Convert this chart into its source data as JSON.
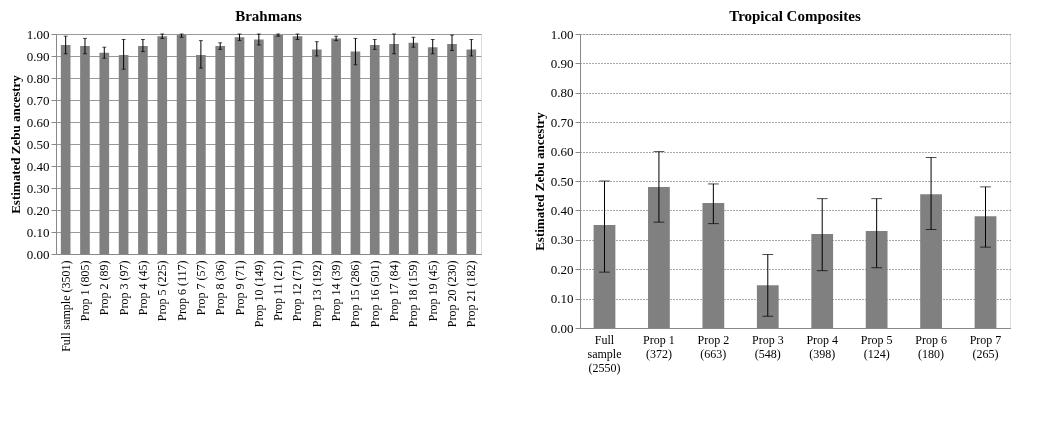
{
  "chart_data": [
    {
      "type": "bar",
      "title": "Brahmans",
      "ylabel": "Estimated Zebu ancestry",
      "categories": [
        "Full sample (3501)",
        "Prop 1 (805)",
        "Prop 2 (89)",
        "Prop 3 (97)",
        "Prop 4 (45)",
        "Prop 5 (225)",
        "Prop 6 (117)",
        "Prop 7 (57)",
        "Prop 8 (36)",
        "Prop 9 (71)",
        "Prop 10 (149)",
        "Prop 11 (21)",
        "Prop 12 (71)",
        "Prop 13 (192)",
        "Prop 14 (39)",
        "Prop 15 (286)",
        "Prop 16 (501)",
        "Prop 17 (84)",
        "Prop 18 (159)",
        "Prop 19 (45)",
        "Prop 20 (230)",
        "Prop 21 (182)"
      ],
      "values": [
        0.95,
        0.945,
        0.915,
        0.905,
        0.945,
        0.99,
        0.995,
        0.905,
        0.945,
        0.985,
        0.975,
        0.995,
        0.99,
        0.93,
        0.98,
        0.92,
        0.95,
        0.955,
        0.96,
        0.94,
        0.955,
        0.93
      ],
      "errors": [
        [
          0.91,
          0.99
        ],
        [
          0.91,
          0.98
        ],
        [
          0.89,
          0.94
        ],
        [
          0.84,
          0.975
        ],
        [
          0.92,
          0.975
        ],
        [
          0.98,
          1.0
        ],
        [
          0.985,
          1.0
        ],
        [
          0.845,
          0.97
        ],
        [
          0.93,
          0.96
        ],
        [
          0.97,
          1.0
        ],
        [
          0.95,
          1.0
        ],
        [
          0.99,
          1.0
        ],
        [
          0.975,
          1.0
        ],
        [
          0.9,
          0.965
        ],
        [
          0.97,
          0.99
        ],
        [
          0.86,
          0.98
        ],
        [
          0.93,
          0.975
        ],
        [
          0.91,
          1.0
        ],
        [
          0.94,
          0.985
        ],
        [
          0.91,
          0.975
        ],
        [
          0.925,
          0.995
        ],
        [
          0.9,
          0.975
        ]
      ],
      "color": "#808080",
      "ylim": [
        0,
        1
      ],
      "yticks": [
        {
          "value": 0,
          "label": "0.00"
        },
        {
          "value": 0.1,
          "label": "0.10"
        },
        {
          "value": 0.2,
          "label": "0.20"
        },
        {
          "value": 0.3,
          "label": "0.30"
        },
        {
          "value": 0.4,
          "label": "0.40"
        },
        {
          "value": 0.5,
          "label": "0.50"
        },
        {
          "value": 0.6,
          "label": "0.60"
        },
        {
          "value": 0.7,
          "label": "0.70"
        },
        {
          "value": 0.8,
          "label": "0.80"
        },
        {
          "value": 0.9,
          "label": "0.90"
        },
        {
          "value": 1,
          "label": "1.00"
        }
      ],
      "grid": "y"
    },
    {
      "type": "bar",
      "title": "Tropical Composites",
      "ylabel": "Estimated Zebu ancestry",
      "categories": [
        "Full sample (2550)",
        "Prop 1 (372)",
        "Prop 2 (663)",
        "Prop 3 (548)",
        "Prop 4 (398)",
        "Prop 5 (124)",
        "Prop 6 (180)",
        "Prop 7 (265)"
      ],
      "values": [
        0.35,
        0.48,
        0.425,
        0.145,
        0.32,
        0.33,
        0.455,
        0.38
      ],
      "errors": [
        [
          0.19,
          0.5
        ],
        [
          0.36,
          0.6
        ],
        [
          0.355,
          0.49
        ],
        [
          0.04,
          0.25
        ],
        [
          0.195,
          0.44
        ],
        [
          0.205,
          0.44
        ],
        [
          0.335,
          0.58
        ],
        [
          0.275,
          0.48
        ]
      ],
      "color": "#808080",
      "ylim": [
        0,
        1
      ],
      "yticks": [
        {
          "value": 0,
          "label": "0.00"
        },
        {
          "value": 0.1,
          "label": "0.10"
        },
        {
          "value": 0.2,
          "label": "0.20"
        },
        {
          "value": 0.3,
          "label": "0.30"
        },
        {
          "value": 0.4,
          "label": "0.40"
        },
        {
          "value": 0.5,
          "label": "0.50"
        },
        {
          "value": 0.6,
          "label": "0.60"
        },
        {
          "value": 0.7,
          "label": "0.70"
        },
        {
          "value": 0.8,
          "label": "0.80"
        },
        {
          "value": 0.9,
          "label": "0.90"
        },
        {
          "value": 1,
          "label": "1.00"
        }
      ],
      "grid": "y"
    }
  ]
}
